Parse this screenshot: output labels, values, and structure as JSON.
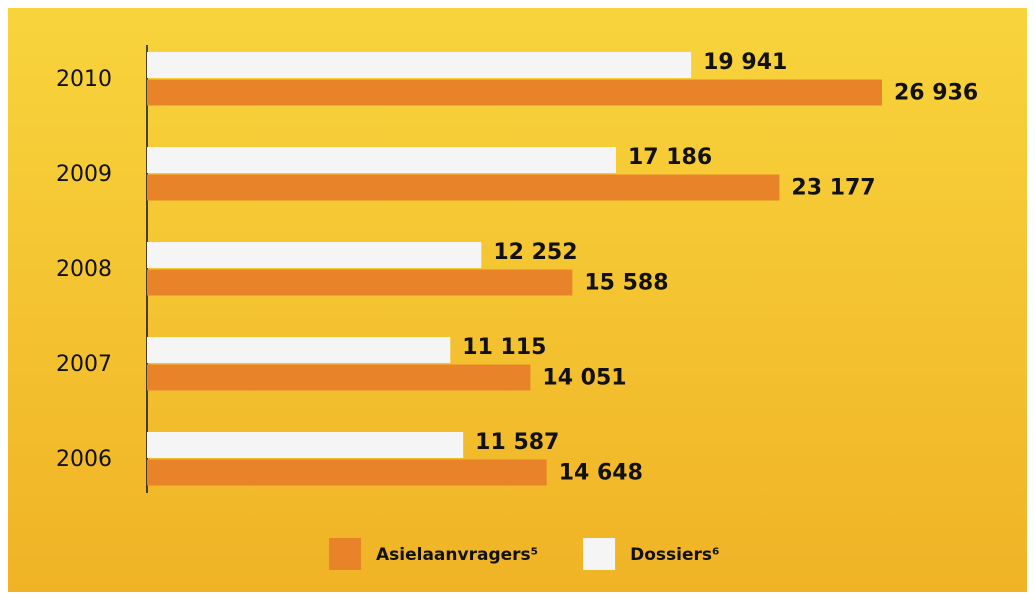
{
  "chart_data": {
    "type": "hbar",
    "categories": [
      "2010",
      "2009",
      "2008",
      "2007",
      "2006"
    ],
    "series": [
      {
        "name": "Dossiers⁶",
        "color": "#f5f5f5",
        "values": [
          19941,
          17186,
          12252,
          11115,
          11587
        ],
        "value_labels": [
          "19 941",
          "17 186",
          "12 252",
          "11 115",
          "11 587"
        ]
      },
      {
        "name": "Asielaanvragers⁵",
        "color": "#e8832a",
        "values": [
          26936,
          23177,
          15588,
          14051,
          14648
        ],
        "value_labels": [
          "26 936",
          "23 177",
          "15 588",
          "14 051",
          "14 648"
        ]
      }
    ],
    "legend": "bottom"
  }
}
